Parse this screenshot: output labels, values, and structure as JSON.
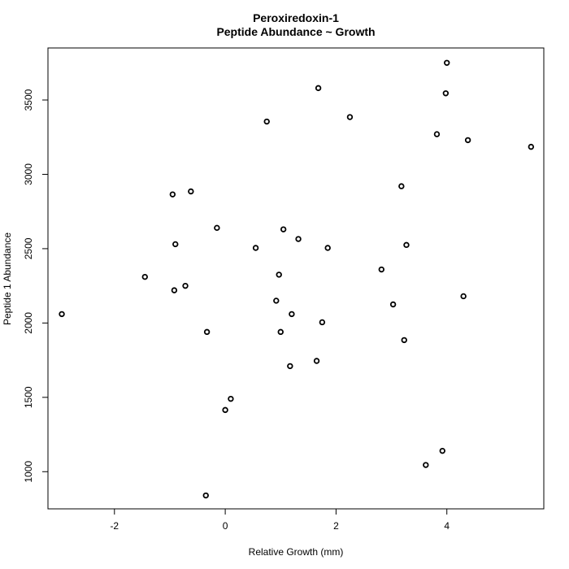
{
  "chart_data": {
    "type": "scatter",
    "title": "Peroxiredoxin-1",
    "subtitle": "Peptide Abundance ~ Growth",
    "xlabel": "Relative Growth (mm)",
    "ylabel": "Peptide 1 Abundance",
    "xlim": [
      -3.2,
      5.75
    ],
    "ylim": [
      750,
      3850
    ],
    "xticks": [
      -2,
      0,
      2,
      4
    ],
    "yticks": [
      1000,
      1500,
      2000,
      2500,
      3000,
      3500
    ],
    "grid": false,
    "legend": "none",
    "points": [
      {
        "x": -2.95,
        "y": 2060
      },
      {
        "x": -1.45,
        "y": 2310
      },
      {
        "x": -0.95,
        "y": 2865
      },
      {
        "x": -0.9,
        "y": 2530
      },
      {
        "x": -0.92,
        "y": 2220
      },
      {
        "x": -0.72,
        "y": 2250
      },
      {
        "x": -0.62,
        "y": 2885
      },
      {
        "x": -0.33,
        "y": 1940
      },
      {
        "x": -0.35,
        "y": 840
      },
      {
        "x": -0.15,
        "y": 2640
      },
      {
        "x": 0.0,
        "y": 1415
      },
      {
        "x": 0.1,
        "y": 1490
      },
      {
        "x": 0.55,
        "y": 2505
      },
      {
        "x": 0.75,
        "y": 3355
      },
      {
        "x": 0.92,
        "y": 2150
      },
      {
        "x": 0.97,
        "y": 2325
      },
      {
        "x": 1.0,
        "y": 1940
      },
      {
        "x": 1.05,
        "y": 2630
      },
      {
        "x": 1.17,
        "y": 1710
      },
      {
        "x": 1.2,
        "y": 2060
      },
      {
        "x": 1.32,
        "y": 2565
      },
      {
        "x": 1.65,
        "y": 1745
      },
      {
        "x": 1.68,
        "y": 3580
      },
      {
        "x": 1.75,
        "y": 2005
      },
      {
        "x": 1.85,
        "y": 2505
      },
      {
        "x": 2.25,
        "y": 3385
      },
      {
        "x": 2.82,
        "y": 2360
      },
      {
        "x": 3.03,
        "y": 2125
      },
      {
        "x": 3.18,
        "y": 2920
      },
      {
        "x": 3.23,
        "y": 1885
      },
      {
        "x": 3.27,
        "y": 2525
      },
      {
        "x": 3.62,
        "y": 1045
      },
      {
        "x": 3.82,
        "y": 3270
      },
      {
        "x": 3.92,
        "y": 1140
      },
      {
        "x": 3.98,
        "y": 3545
      },
      {
        "x": 4.0,
        "y": 3750
      },
      {
        "x": 4.3,
        "y": 2180
      },
      {
        "x": 4.38,
        "y": 3230
      },
      {
        "x": 5.52,
        "y": 3185
      }
    ]
  }
}
